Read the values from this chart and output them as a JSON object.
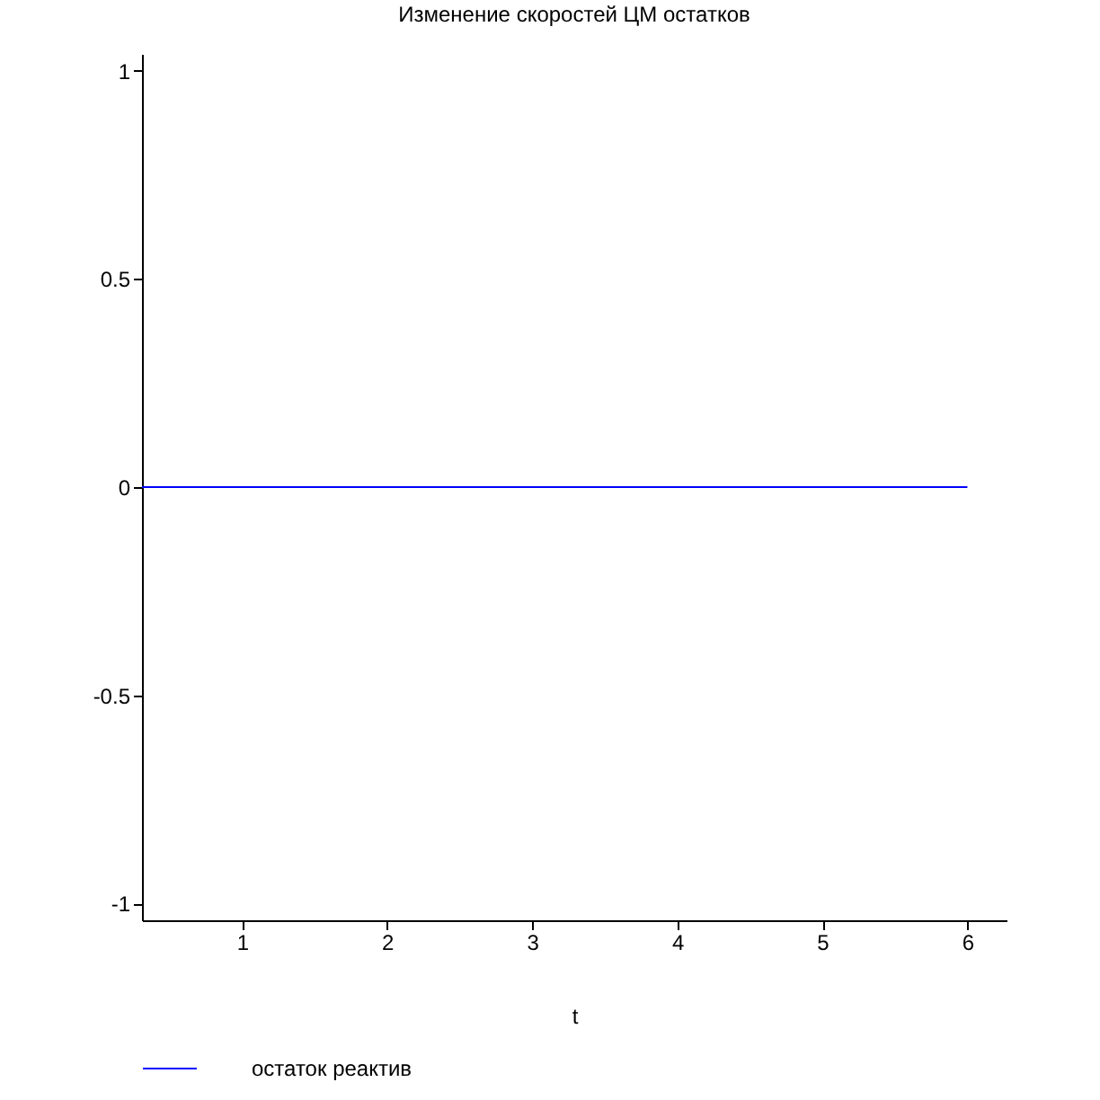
{
  "chart_data": {
    "type": "line",
    "title": "Изменение скоростей ЦМ остатков",
    "xlabel": "t",
    "x": [
      0.31,
      6
    ],
    "series": [
      {
        "name": "остаток реактив",
        "color": "#0000ff",
        "values": [
          0,
          0
        ]
      }
    ],
    "xlim": [
      0.31,
      6.27
    ],
    "xticks": [
      1,
      2,
      3,
      4,
      5,
      6
    ],
    "ylim": [
      -1.04,
      1.04
    ],
    "yticks": [
      -1,
      -0.5,
      0,
      0.5,
      1
    ],
    "grid": false,
    "legend": "bottom"
  }
}
